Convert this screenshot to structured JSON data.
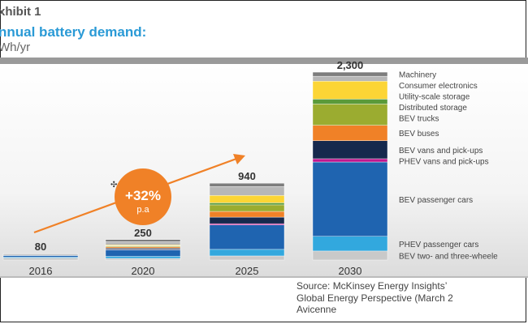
{
  "exhibit_label": "xhibit 1",
  "title": "nnual battery demand:",
  "unit": "Wh/yr",
  "growth_badge": {
    "value": "+32%",
    "suffix": "p.a"
  },
  "source_lines": [
    "Source: McKinsey Energy Insights’",
    "Global Energy Perspective (March 2",
    "Avicenne"
  ],
  "colors": {
    "bev_two_three_wheelers": "#c9c9c9",
    "phev_passenger_cars": "#32a8de",
    "bev_passenger_cars": "#1f64b0",
    "phev_vans_pickups": "#c0188f",
    "bev_vans_pickups": "#16294d",
    "bev_buses": "#f08127",
    "bev_trucks": "#9bac30",
    "distributed_storage": "#5a9a3a",
    "utility_scale_storage": "#fcd535",
    "consumer_electronics": "#b7b7b7",
    "machinery": "#7d7d7d",
    "arrow": "#f08127",
    "title_blue": "#2a9ad6"
  },
  "chart_data": {
    "type": "bar",
    "stacked": true,
    "categories": [
      "2016",
      "2020",
      "2025",
      "2030"
    ],
    "totals": [
      "80",
      "250",
      "940",
      "2,300"
    ],
    "ylim": [
      0,
      2400
    ],
    "grid": false,
    "legend_placement": "right",
    "series": [
      {
        "name": "BEV two- and three-wheele",
        "key": "bev_two_three_wheelers",
        "values": [
          25,
          20,
          50,
          110
        ]
      },
      {
        "name": "PHEV passenger cars",
        "key": "phev_passenger_cars",
        "values": [
          10,
          25,
          80,
          180
        ]
      },
      {
        "name": "BEV passenger cars",
        "key": "bev_passenger_cars",
        "values": [
          20,
          80,
          300,
          910
        ]
      },
      {
        "name": "PHEV vans and pick-ups",
        "key": "phev_vans_pickups",
        "values": [
          0,
          5,
          15,
          40
        ]
      },
      {
        "name": "BEV vans and pick-ups",
        "key": "bev_vans_pickups",
        "values": [
          2,
          15,
          80,
          220
        ]
      },
      {
        "name": "BEV buses",
        "key": "bev_buses",
        "values": [
          3,
          15,
          70,
          190
        ]
      },
      {
        "name": "BEV trucks",
        "key": "bev_trucks",
        "values": [
          0,
          10,
          80,
          260
        ]
      },
      {
        "name": "Distributed storage",
        "key": "distributed_storage",
        "values": [
          0,
          5,
          25,
          60
        ]
      },
      {
        "name": "Utility-scale storage",
        "key": "utility_scale_storage",
        "values": [
          0,
          10,
          90,
          220
        ]
      },
      {
        "name": "Consumer electronics",
        "key": "consumer_electronics",
        "values": [
          15,
          40,
          110,
          60
        ]
      },
      {
        "name": "Machinery",
        "key": "machinery",
        "values": [
          5,
          25,
          40,
          50
        ]
      }
    ]
  }
}
